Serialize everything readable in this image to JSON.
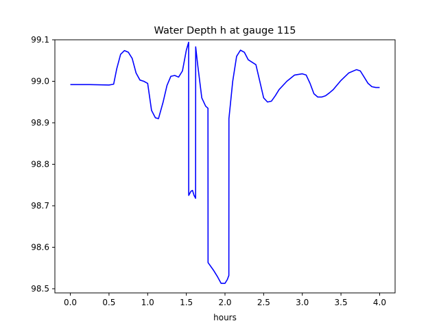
{
  "chart_data": {
    "type": "line",
    "title": "Water Depth h at gauge 115",
    "xlabel": "hours",
    "ylabel": "",
    "xlim": [
      -0.2,
      4.2
    ],
    "ylim": [
      98.49,
      99.1
    ],
    "xticks": [
      0.0,
      0.5,
      1.0,
      1.5,
      2.0,
      2.5,
      3.0,
      3.5,
      4.0
    ],
    "xtick_labels": [
      "0.0",
      "0.5",
      "1.0",
      "1.5",
      "2.0",
      "2.5",
      "3.0",
      "3.5",
      "4.0"
    ],
    "yticks": [
      98.5,
      98.6,
      98.7,
      98.8,
      98.9,
      99.0,
      99.1
    ],
    "ytick_labels": [
      "98.5",
      "98.6",
      "98.7",
      "98.8",
      "98.9",
      "99.0",
      "99.1"
    ],
    "grid": false,
    "series": [
      {
        "color": "#0000ff",
        "x": [
          0.0,
          0.25,
          0.5,
          0.56,
          0.6,
          0.65,
          0.7,
          0.75,
          0.8,
          0.85,
          0.9,
          0.95,
          1.0,
          1.05,
          1.1,
          1.14,
          1.2,
          1.25,
          1.3,
          1.35,
          1.4,
          1.45,
          1.5,
          1.53,
          1.531,
          1.56,
          1.58,
          1.6,
          1.62,
          1.621,
          1.65,
          1.7,
          1.75,
          1.78,
          1.781,
          1.85,
          1.9,
          1.95,
          2.0,
          2.03,
          2.05,
          2.051,
          2.1,
          2.15,
          2.2,
          2.25,
          2.3,
          2.35,
          2.4,
          2.45,
          2.5,
          2.55,
          2.6,
          2.65,
          2.7,
          2.8,
          2.9,
          3.0,
          3.05,
          3.1,
          3.15,
          3.2,
          3.25,
          3.3,
          3.35,
          3.4,
          3.5,
          3.6,
          3.7,
          3.75,
          3.8,
          3.85,
          3.9,
          3.95,
          4.0
        ],
        "y": [
          98.992,
          98.992,
          98.991,
          98.993,
          99.03,
          99.065,
          99.074,
          99.07,
          99.055,
          99.02,
          99.003,
          99.0,
          98.995,
          98.93,
          98.912,
          98.91,
          98.95,
          98.99,
          99.012,
          99.014,
          99.01,
          99.025,
          99.075,
          99.094,
          98.725,
          98.735,
          98.737,
          98.725,
          98.718,
          99.083,
          99.035,
          98.96,
          98.94,
          98.935,
          98.563,
          98.545,
          98.53,
          98.513,
          98.513,
          98.522,
          98.532,
          98.91,
          99.0,
          99.06,
          99.075,
          99.07,
          99.052,
          99.046,
          99.04,
          99.0,
          98.96,
          98.95,
          98.952,
          98.965,
          98.98,
          99.0,
          99.015,
          99.018,
          99.015,
          98.995,
          98.97,
          98.962,
          98.962,
          98.965,
          98.972,
          98.98,
          99.002,
          99.02,
          99.028,
          99.025,
          99.01,
          98.995,
          98.987,
          98.985,
          98.985
        ]
      }
    ]
  }
}
